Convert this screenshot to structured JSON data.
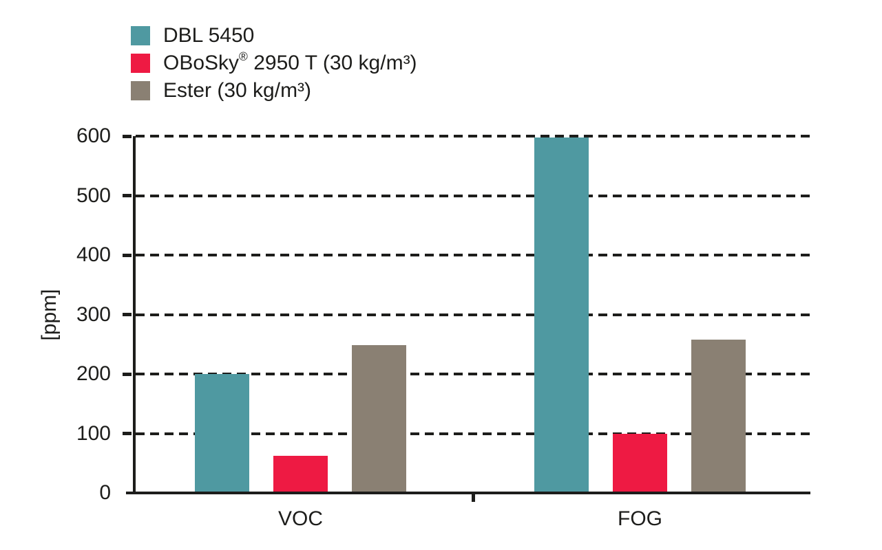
{
  "chart_data": {
    "type": "bar",
    "title": "",
    "xlabel": "",
    "ylabel": "[ppm]",
    "categories": [
      "VOC",
      "FOG"
    ],
    "series": [
      {
        "name": "DBL 5450",
        "color": "#4f99a1",
        "values": [
          200,
          598
        ]
      },
      {
        "name": "OBoSky® 2950 T (30 kg/m³)",
        "color": "#ee1a43",
        "values": [
          62,
          99
        ]
      },
      {
        "name": "Ester (30 kg/m³)",
        "color": "#8a8073",
        "values": [
          248,
          258
        ]
      }
    ],
    "ylim": [
      0,
      600
    ],
    "yticks": [
      0,
      100,
      200,
      300,
      400,
      500,
      600
    ],
    "grid": "dashed-horizontal",
    "legend_position": "top-left",
    "axis_color": "#1d1d1b",
    "text_color": "#1d1d1b"
  }
}
